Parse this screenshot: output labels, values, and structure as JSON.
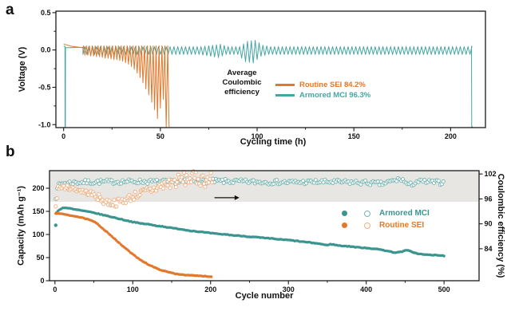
{
  "figure": {
    "panel_labels": {
      "a": "a",
      "b": "b"
    }
  },
  "colors": {
    "axis": "#1a1a1a",
    "band": "#e8e6e2",
    "teal": "#3e9e9a",
    "orange": "#e2782b"
  },
  "chart_data": [
    {
      "id": "a",
      "type": "line",
      "xlabel": "Cycling time (h)",
      "ylabel": "Voltage (V)",
      "xlim": [
        -4,
        218
      ],
      "ylim": [
        -1.04,
        0.52
      ],
      "xticks": [
        {
          "v": 0,
          "label": "0"
        },
        {
          "v": 50,
          "label": "50"
        },
        {
          "v": 100,
          "label": "100"
        },
        {
          "v": 150,
          "label": "150"
        },
        {
          "v": 200,
          "label": "200"
        }
      ],
      "xticks_minor": [
        25,
        75,
        125,
        175
      ],
      "yticks": [
        {
          "v": 0.5,
          "label": "0.5"
        },
        {
          "v": 0,
          "label": "0.0"
        },
        {
          "v": -0.5,
          "label": "-0.5"
        },
        {
          "v": -1,
          "label": "-1.0"
        }
      ],
      "yticks_minor": [
        0.25,
        -0.25,
        -0.75
      ],
      "annotation": [
        "Average",
        "Coulombic",
        "efficiency"
      ],
      "legend": [
        {
          "label": "Routine SEI 84.2%",
          "color": "#e2782b"
        },
        {
          "label": "Armored MCI 96.3%",
          "color": "#45a6a2"
        }
      ],
      "series": [
        {
          "name": "Armored MCI",
          "color": "#45a6a2",
          "width": 1,
          "profile_pre": [
            [
              0,
              0.05
            ],
            [
              0.7,
              0.05
            ],
            [
              0.74,
              -1.03
            ],
            [
              0.9,
              -1.03
            ],
            [
              0.96,
              0.03
            ],
            [
              10,
              0.035
            ]
          ],
          "osc": {
            "t0": 10,
            "t1": 210.5,
            "period": 2,
            "upper": 0.045,
            "lower": -0.06,
            "mod": [
              [
                10,
                1
              ],
              [
                70,
                1
              ],
              [
                76,
                1.4
              ],
              [
                80,
                1.7
              ],
              [
                84,
                1
              ],
              [
                90,
                1
              ],
              [
                94,
                2.6
              ],
              [
                98,
                2.9
              ],
              [
                102,
                1.4
              ],
              [
                106,
                1
              ],
              [
                204,
                1
              ],
              [
                210,
                1
              ]
            ]
          },
          "profile_post": [
            [
              210.8,
              0.05
            ],
            [
              210.9,
              -1.03
            ],
            [
              211.4,
              -1.03
            ]
          ]
        },
        {
          "name": "Routine SEI",
          "color": "#e2782b",
          "width": 1,
          "profile_pre": [
            [
              0,
              0.08
            ],
            [
              4,
              0.05
            ],
            [
              10,
              0.03
            ]
          ],
          "spike_upper": 0.055,
          "spikes": [
            [
              11,
              -0.07
            ],
            [
              12.5,
              -0.07
            ],
            [
              14,
              -0.08
            ],
            [
              15.5,
              -0.08
            ],
            [
              17,
              -0.09
            ],
            [
              18.5,
              -0.09
            ],
            [
              20,
              -0.1
            ],
            [
              21.5,
              -0.11
            ],
            [
              23,
              -0.11
            ],
            [
              24.5,
              -0.12
            ],
            [
              26,
              -0.13
            ],
            [
              27.5,
              -0.13
            ],
            [
              29,
              -0.14
            ],
            [
              30.5,
              -0.15
            ],
            [
              32,
              -0.17
            ],
            [
              33.5,
              -0.19
            ],
            [
              35,
              -0.22
            ],
            [
              36.5,
              -0.26
            ],
            [
              38,
              -0.31
            ],
            [
              39.5,
              -0.37
            ],
            [
              41,
              -0.44
            ],
            [
              42.5,
              -0.52
            ],
            [
              44,
              -0.6
            ],
            [
              45.5,
              -0.7
            ],
            [
              47,
              -0.8
            ],
            [
              48.5,
              -0.92
            ],
            [
              50,
              -0.78
            ],
            [
              51.5,
              -0.66
            ],
            [
              53,
              -1.03
            ],
            [
              54.5,
              -1.03
            ]
          ]
        }
      ]
    },
    {
      "id": "b",
      "type": "scatter",
      "xlabel": "Cycle number",
      "ylabel": "Capacity (mAh g⁻¹)",
      "ylabel_right": "Coulombic efficiency (%)",
      "xlim": [
        -7,
        545
      ],
      "ylim": [
        0,
        238
      ],
      "ylim_right": [
        76.3,
        102.8
      ],
      "xticks": [
        {
          "v": 0,
          "label": "0"
        },
        {
          "v": 100,
          "label": "100"
        },
        {
          "v": 200,
          "label": "200"
        },
        {
          "v": 300,
          "label": "300"
        },
        {
          "v": 400,
          "label": "400"
        },
        {
          "v": 500,
          "label": "500"
        }
      ],
      "xticks_minor": [
        50,
        150,
        250,
        350,
        450
      ],
      "yticks": [
        {
          "v": 0,
          "label": "0"
        },
        {
          "v": 50,
          "label": "50"
        },
        {
          "v": 100,
          "label": "100"
        },
        {
          "v": 150,
          "label": "150"
        },
        {
          "v": 200,
          "label": "200"
        }
      ],
      "yticks_right": [
        {
          "v": 102,
          "label": "102"
        },
        {
          "v": 96,
          "label": "96"
        },
        {
          "v": 90,
          "label": "90"
        },
        {
          "v": 84,
          "label": "84"
        }
      ],
      "band": {
        "eff_bottom": 95.3,
        "color": "#e8e6e2"
      },
      "arrow": {
        "x1": 205,
        "x2": 237,
        "eff": 96.3
      },
      "legend": [
        {
          "label": "Armored MCI",
          "color": "#3b948f",
          "open_color": "#74b5b1"
        },
        {
          "label": "Routine SEI",
          "color": "#e2782b",
          "open_color": "#efb083"
        }
      ],
      "series": [
        {
          "name": "Armored MCI capacity",
          "kind": "capacity",
          "color": "#3b948f",
          "step": 2,
          "range": [
            2,
            500
          ],
          "jitter": 0.7,
          "anchors": [
            [
              2,
              147
            ],
            [
              4,
              151
            ],
            [
              6,
              154
            ],
            [
              9,
              157
            ],
            [
              12,
              158
            ],
            [
              16,
              157
            ],
            [
              20,
              156
            ],
            [
              25,
              154
            ],
            [
              30,
              153
            ],
            [
              40,
              150
            ],
            [
              50,
              147
            ],
            [
              60,
              143
            ],
            [
              70,
              139
            ],
            [
              80,
              135
            ],
            [
              90,
              131
            ],
            [
              100,
              127
            ],
            [
              110,
              124
            ],
            [
              120,
              122
            ],
            [
              130,
              119
            ],
            [
              140,
              117
            ],
            [
              150,
              114
            ],
            [
              160,
              112
            ],
            [
              170,
              109
            ],
            [
              180,
              107
            ],
            [
              190,
              105
            ],
            [
              200,
              103
            ],
            [
              210,
              101
            ],
            [
              220,
              100
            ],
            [
              230,
              98
            ],
            [
              240,
              97
            ],
            [
              250,
              95
            ],
            [
              260,
              94
            ],
            [
              270,
              92
            ],
            [
              280,
              91
            ],
            [
              290,
              89
            ],
            [
              300,
              88
            ],
            [
              310,
              86
            ],
            [
              320,
              84
            ],
            [
              330,
              82
            ],
            [
              340,
              80
            ],
            [
              348,
              77
            ],
            [
              355,
              79
            ],
            [
              365,
              76
            ],
            [
              380,
              74
            ],
            [
              390,
              72
            ],
            [
              400,
              71
            ],
            [
              410,
              69
            ],
            [
              420,
              67
            ],
            [
              428,
              64
            ],
            [
              436,
              61
            ],
            [
              444,
              62
            ],
            [
              452,
              66
            ],
            [
              458,
              63
            ],
            [
              465,
              59
            ],
            [
              472,
              57
            ],
            [
              480,
              56
            ],
            [
              490,
              55
            ],
            [
              500,
              54
            ]
          ]
        },
        {
          "name": "Routine SEI capacity",
          "kind": "capacity",
          "color": "#e2782b",
          "step": 2,
          "range": [
            1,
            201
          ],
          "jitter": 0.6,
          "anchors": [
            [
              1,
              146
            ],
            [
              5,
              145
            ],
            [
              10,
              144
            ],
            [
              15,
              143
            ],
            [
              20,
              141
            ],
            [
              25,
              140
            ],
            [
              30,
              138
            ],
            [
              35,
              136
            ],
            [
              40,
              134
            ],
            [
              45,
              131
            ],
            [
              50,
              128
            ],
            [
              55,
              122
            ],
            [
              60,
              115
            ],
            [
              65,
              108
            ],
            [
              70,
              101
            ],
            [
              75,
              93
            ],
            [
              80,
              85
            ],
            [
              85,
              78
            ],
            [
              90,
              71
            ],
            [
              95,
              64
            ],
            [
              100,
              57
            ],
            [
              105,
              51
            ],
            [
              110,
              45
            ],
            [
              115,
              40
            ],
            [
              120,
              35
            ],
            [
              125,
              31
            ],
            [
              130,
              27
            ],
            [
              135,
              24
            ],
            [
              140,
              21
            ],
            [
              145,
              19
            ],
            [
              150,
              17
            ],
            [
              155,
              15
            ],
            [
              160,
              14
            ],
            [
              170,
              12
            ],
            [
              180,
              11
            ],
            [
              190,
              10
            ],
            [
              200,
              9
            ]
          ]
        },
        {
          "name": "Armored MCI efficiency",
          "kind": "efficiency",
          "color": "#74b5b1",
          "step": 2,
          "range": [
            1,
            500
          ],
          "jitter": 0.55,
          "anchors": [
            [
              1,
              96.5
            ],
            [
              3,
              99
            ],
            [
              10,
              99.8
            ],
            [
              30,
              100
            ],
            [
              60,
              100.1
            ],
            [
              100,
              100.2
            ],
            [
              150,
              100.1
            ],
            [
              200,
              100.3
            ],
            [
              250,
              100.1
            ],
            [
              300,
              100
            ],
            [
              350,
              100.1
            ],
            [
              400,
              99.9
            ],
            [
              420,
              99.6
            ],
            [
              445,
              100.8
            ],
            [
              455,
              99.2
            ],
            [
              465,
              100.2
            ],
            [
              500,
              99.9
            ]
          ]
        },
        {
          "name": "Routine SEI efficiency",
          "kind": "efficiency",
          "color": "#efb083",
          "step": 1.5,
          "range": [
            1,
            202
          ],
          "jitter_anchors": [
            [
              1,
              0.5
            ],
            [
              40,
              0.6
            ],
            [
              60,
              0.9
            ],
            [
              100,
              1
            ],
            [
              130,
              1.2
            ],
            [
              150,
              1.6
            ],
            [
              202,
              1.8
            ]
          ],
          "anchors": [
            [
              1,
              94.6
            ],
            [
              4,
              98.6
            ],
            [
              10,
              98.9
            ],
            [
              20,
              98.6
            ],
            [
              30,
              98.2
            ],
            [
              40,
              97.6
            ],
            [
              48,
              97.2
            ],
            [
              55,
              96.4
            ],
            [
              62,
              95.6
            ],
            [
              70,
              95.1
            ],
            [
              78,
              95
            ],
            [
              85,
              95.4
            ],
            [
              95,
              96.2
            ],
            [
              105,
              97
            ],
            [
              115,
              97.6
            ],
            [
              125,
              98.2
            ],
            [
              135,
              99
            ],
            [
              145,
              99.6
            ],
            [
              155,
              100.2
            ],
            [
              165,
              100.7
            ],
            [
              175,
              101
            ],
            [
              185,
              100.8
            ],
            [
              195,
              100.6
            ],
            [
              202,
              100.7
            ]
          ]
        }
      ],
      "outliers": [
        {
          "kind": "capacity",
          "color": "#3b948f",
          "x": 1,
          "y": 120
        }
      ]
    }
  ]
}
